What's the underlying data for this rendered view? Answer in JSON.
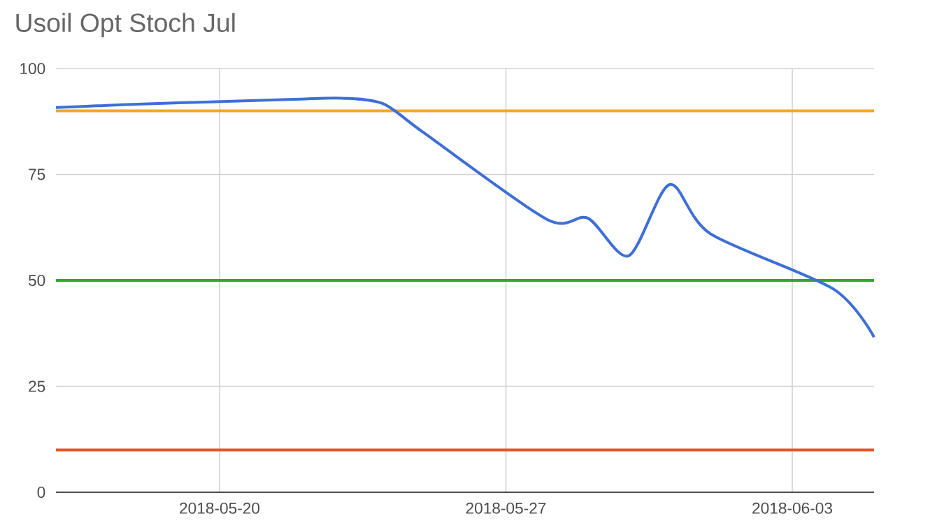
{
  "chart_data": {
    "type": "line",
    "title": "Usoil Opt Stoch Jul",
    "x": [
      "2018-05-16",
      "2018-05-17",
      "2018-05-18",
      "2018-05-21",
      "2018-05-22",
      "2018-05-23",
      "2018-05-24",
      "2018-05-25",
      "2018-05-28",
      "2018-05-29",
      "2018-05-30",
      "2018-05-31",
      "2018-06-01",
      "2018-06-04",
      "2018-06-05"
    ],
    "series": [
      {
        "color": "#3d6fd6",
        "values": [
          90.8,
          91.2,
          91.6,
          92.5,
          92.8,
          93.0,
          91.7,
          84.8,
          64.4,
          64.7,
          55.8,
          72.6,
          61.0,
          48.0,
          36.6
        ]
      }
    ],
    "xlim": [
      "2018-05-16",
      "2018-06-05"
    ],
    "xticks": [
      "2018-05-20",
      "2018-05-27",
      "2018-06-03"
    ],
    "ylim": [
      0,
      100
    ],
    "yticks": [
      0,
      25,
      50,
      75,
      100
    ],
    "grid": true,
    "marker": "none",
    "line_style": "solid",
    "ref_lines": [
      {
        "axis": "y",
        "value": 90,
        "color": "#f4a623"
      },
      {
        "axis": "y",
        "value": 50,
        "color": "#33a532"
      },
      {
        "axis": "y",
        "value": 10,
        "color": "#e8542a"
      }
    ]
  }
}
